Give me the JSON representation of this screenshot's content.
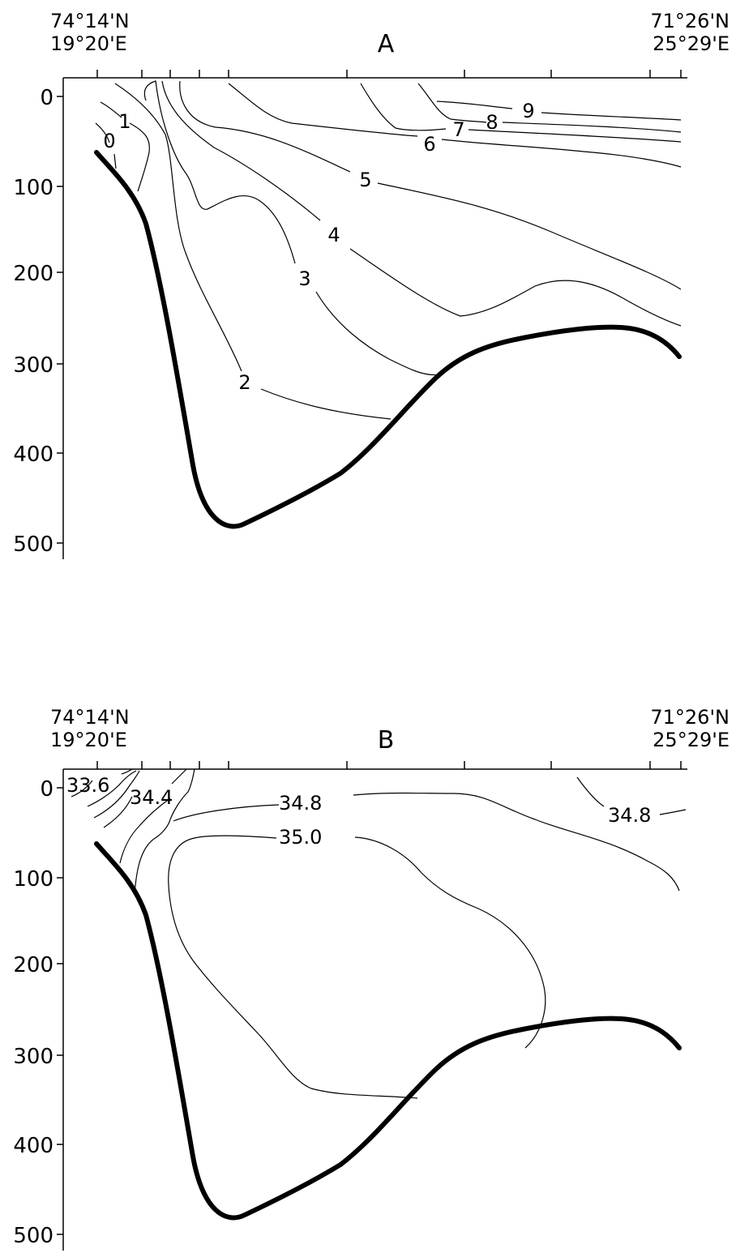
{
  "chart_data": [
    {
      "type": "contour",
      "title": "A",
      "corner_left": [
        "74°14'N",
        "19°20'E"
      ],
      "corner_right": [
        "71°26'N",
        "25°29'E"
      ],
      "y_axis": {
        "ticks": [
          "0",
          "100",
          "200",
          "300",
          "400",
          "500"
        ],
        "range": [
          0,
          500
        ],
        "inverted": true
      },
      "contour_labels": [
        "0",
        "1",
        "2",
        "3",
        "4",
        "5",
        "6",
        "7",
        "8",
        "9"
      ],
      "bottom_profile": "thick black bottom line"
    },
    {
      "type": "contour",
      "title": "B",
      "corner_left": [
        "74°14'N",
        "19°20'E"
      ],
      "corner_right": [
        "71°26'N",
        "25°29'E"
      ],
      "y_axis": {
        "ticks": [
          "0",
          "100",
          "200",
          "300",
          "400",
          "500"
        ],
        "range": [
          0,
          500
        ],
        "inverted": true
      },
      "contour_labels": [
        "33.6",
        "34.4",
        "34.8",
        "35.0",
        "34.8"
      ],
      "bottom_profile": "thick black bottom line"
    }
  ],
  "colors": {
    "ink": "#000000",
    "background": "#ffffff"
  }
}
